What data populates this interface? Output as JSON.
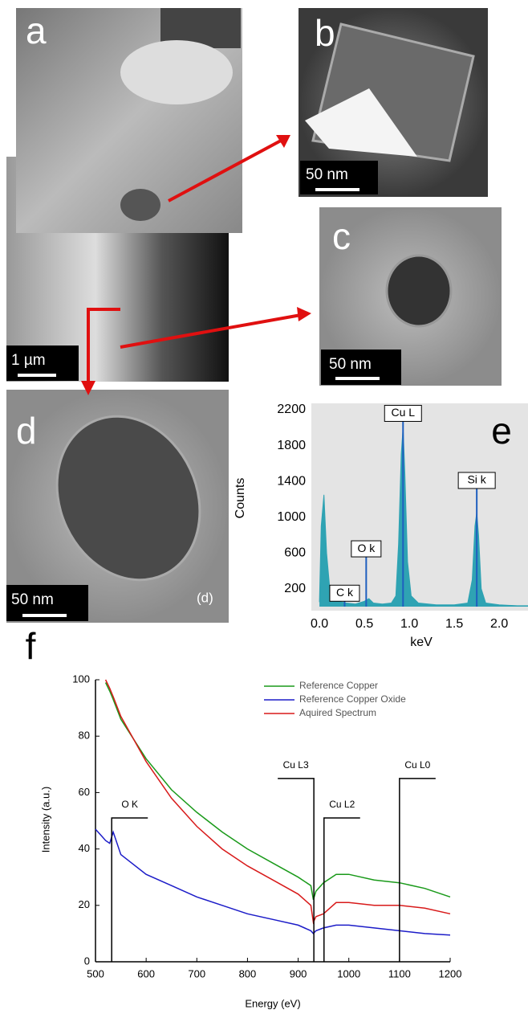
{
  "panels": [
    {
      "label": "a",
      "scale_bar": "1 µm"
    },
    {
      "label": "b",
      "scale_bar": "50 nm"
    },
    {
      "label": "c",
      "scale_bar": "50 nm"
    },
    {
      "label": "d",
      "scale_bar": "50 nm",
      "caption": "(d)"
    }
  ],
  "chart_data": [
    {
      "type": "area",
      "panel_label": "e",
      "ylabel": "Counts",
      "xlabel": "keV",
      "xlim": [
        -0.09,
        2.32
      ],
      "ylim": [
        0,
        2200
      ],
      "xticks": [
        {
          "value": 0,
          "label": "0.0"
        },
        0.5,
        {
          "value": 1,
          "label": "1.0"
        },
        1.5,
        {
          "value": 2,
          "label": "2.0"
        }
      ],
      "yticks": [
        200,
        600,
        1000,
        1400,
        1800,
        2200
      ],
      "background": "#e4e4e4",
      "color": "#2fa3b3",
      "line_color": "#1f5fbf",
      "x": [
        0.0,
        0.02,
        0.05,
        0.08,
        0.12,
        0.2,
        0.3,
        0.4,
        0.5,
        0.55,
        0.6,
        0.7,
        0.8,
        0.85,
        0.88,
        0.91,
        0.93,
        0.95,
        0.98,
        1.02,
        1.1,
        1.3,
        1.5,
        1.65,
        1.7,
        1.73,
        1.75,
        1.77,
        1.8,
        1.85,
        2.0,
        2.2,
        2.32
      ],
      "values": [
        50,
        900,
        1250,
        600,
        150,
        60,
        40,
        30,
        60,
        90,
        40,
        30,
        40,
        120,
        700,
        1700,
        2000,
        1500,
        500,
        120,
        40,
        20,
        20,
        40,
        300,
        900,
        1050,
        800,
        200,
        40,
        20,
        10,
        10
      ],
      "annotations": [
        {
          "label": "C k",
          "x": 0.28,
          "y": 150
        },
        {
          "label": "O k",
          "x": 0.52,
          "y": 646
        },
        {
          "label": "Cu L",
          "x": 0.93,
          "y": 2160
        },
        {
          "label": "Si k",
          "x": 1.75,
          "y": 1410
        }
      ]
    },
    {
      "type": "line",
      "panel_label": "f",
      "xlabel": "Energy (eV)",
      "ylabel": "Intensity (a.u.)",
      "xlim": [
        500,
        1200
      ],
      "ylim": [
        0,
        100
      ],
      "xticks": [
        500,
        600,
        700,
        800,
        900,
        1000,
        1100,
        1200
      ],
      "yticks": [
        0,
        20,
        40,
        60,
        80,
        100
      ],
      "legend": "upper right",
      "x": [
        500,
        510,
        520,
        528,
        535,
        550,
        600,
        650,
        700,
        750,
        800,
        850,
        900,
        925,
        930,
        935,
        950,
        975,
        1000,
        1050,
        1100,
        1150,
        1200
      ],
      "series": [
        {
          "name": "Reference Copper",
          "color": "#1a9a1a",
          "values": [
            null,
            null,
            99,
            96,
            93,
            86,
            72,
            61,
            53,
            46,
            40,
            35,
            30,
            27,
            22,
            25,
            28,
            31,
            31,
            29,
            28,
            26,
            23
          ]
        },
        {
          "name": "Reference Copper Oxide",
          "color": "#1c1cc8",
          "values": [
            47,
            45,
            43,
            42,
            46,
            38,
            31,
            27,
            23,
            20,
            17,
            15,
            13,
            11,
            10,
            11,
            12,
            13,
            13,
            12,
            11,
            10,
            9.5
          ]
        },
        {
          "name": "Aquired Spectrum",
          "color": "#d81a1a",
          "values": [
            null,
            null,
            100,
            97,
            94,
            87,
            71,
            58,
            48,
            40,
            34,
            29,
            24,
            20,
            14,
            16,
            17,
            21,
            21,
            20,
            20,
            19,
            17
          ]
        }
      ],
      "annotations": [
        {
          "label": "O K",
          "x": 532,
          "y": 51
        },
        {
          "label": "Cu L3",
          "x": 931,
          "y": 65
        },
        {
          "label": "Cu L2",
          "x": 951,
          "y": 51
        },
        {
          "label": "Cu L0",
          "x": 1100,
          "y": 65
        }
      ]
    }
  ]
}
